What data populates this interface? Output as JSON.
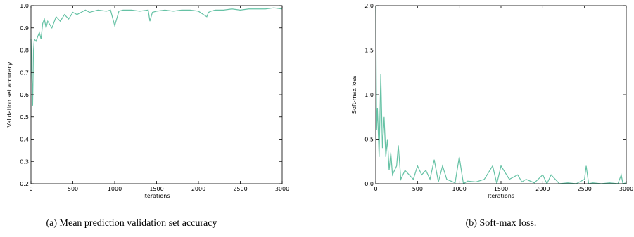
{
  "chart_data": [
    {
      "type": "line",
      "caption": "(a)  Mean prediction validation set accuracy",
      "xlabel": "Iterations",
      "ylabel": "Validation set accuracy",
      "xlim": [
        0,
        3000
      ],
      "xticks": [
        0,
        500,
        1000,
        1500,
        2000,
        2500,
        3000
      ],
      "ylim": [
        0.2,
        1.0
      ],
      "yticks": [
        0.2,
        0.3,
        0.4,
        0.5,
        0.6,
        0.7,
        0.8,
        0.9,
        {
          "value": 1.0,
          "label": "1.0"
        }
      ],
      "color": "#66c2a5",
      "x": [
        0,
        10,
        20,
        30,
        40,
        60,
        80,
        100,
        120,
        140,
        160,
        180,
        200,
        250,
        300,
        350,
        400,
        450,
        500,
        550,
        600,
        650,
        700,
        800,
        900,
        950,
        1000,
        1050,
        1100,
        1200,
        1300,
        1400,
        1420,
        1450,
        1500,
        1600,
        1700,
        1800,
        1900,
        2000,
        2100,
        2120,
        2150,
        2200,
        2300,
        2400,
        2500,
        2600,
        2700,
        2800,
        2900,
        3000
      ],
      "values": [
        0.85,
        0.7,
        0.55,
        0.8,
        0.85,
        0.84,
        0.86,
        0.88,
        0.85,
        0.92,
        0.94,
        0.9,
        0.93,
        0.9,
        0.95,
        0.93,
        0.96,
        0.94,
        0.97,
        0.96,
        0.97,
        0.98,
        0.97,
        0.98,
        0.975,
        0.98,
        0.91,
        0.975,
        0.98,
        0.98,
        0.975,
        0.98,
        0.93,
        0.97,
        0.975,
        0.98,
        0.975,
        0.98,
        0.98,
        0.975,
        0.95,
        0.97,
        0.975,
        0.98,
        0.98,
        0.985,
        0.98,
        0.985,
        0.985,
        0.985,
        0.99,
        0.985
      ]
    },
    {
      "type": "line",
      "caption": "(b)  Soft-max loss.",
      "xlabel": "Iterations",
      "ylabel": "Soft-max loss",
      "xlim": [
        0,
        3000
      ],
      "xticks": [
        0,
        500,
        1000,
        1500,
        2000,
        2500,
        3000
      ],
      "ylim": [
        0,
        2.0
      ],
      "yticks": [
        {
          "value": 0,
          "label": "0.0"
        },
        0.5,
        {
          "value": 1.0,
          "label": "1.0"
        },
        1.5,
        {
          "value": 2.0,
          "label": "2.0"
        }
      ],
      "color": "#66c2a5",
      "x": [
        0,
        10,
        20,
        40,
        60,
        80,
        100,
        120,
        140,
        160,
        180,
        200,
        250,
        270,
        300,
        350,
        400,
        450,
        500,
        550,
        600,
        650,
        700,
        750,
        800,
        850,
        900,
        950,
        1000,
        1050,
        1100,
        1200,
        1300,
        1400,
        1450,
        1500,
        1600,
        1700,
        1750,
        1800,
        1900,
        2000,
        2050,
        2100,
        2200,
        2300,
        2400,
        2500,
        2520,
        2550,
        2600,
        2700,
        2800,
        2900,
        2940,
        2960,
        3000
      ],
      "values": [
        2.0,
        0.6,
        0.85,
        0.3,
        1.23,
        0.4,
        0.75,
        0.3,
        0.5,
        0.15,
        0.35,
        0.1,
        0.2,
        0.43,
        0.05,
        0.15,
        0.1,
        0.05,
        0.2,
        0.1,
        0.15,
        0.05,
        0.27,
        0.02,
        0.2,
        0.05,
        0.03,
        0.01,
        0.3,
        0.0,
        0.03,
        0.02,
        0.05,
        0.2,
        0.0,
        0.2,
        0.05,
        0.1,
        0.02,
        0.05,
        0.01,
        0.1,
        0.0,
        0.1,
        0.0,
        0.01,
        0.0,
        0.05,
        0.2,
        0.0,
        0.01,
        0.0,
        0.01,
        0.0,
        0.1,
        0.0,
        0.01
      ]
    }
  ]
}
